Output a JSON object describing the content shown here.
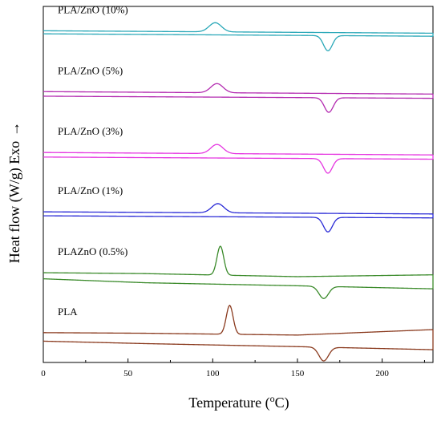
{
  "chart_data": {
    "type": "line",
    "title": "",
    "xlabel": "Temperature (",
    "xlabel_super": "o",
    "xlabel_end": "C)",
    "ylabel": "Heat flow (W/g) Exo",
    "ylabel_arrow": "→",
    "xlim": [
      0,
      230
    ],
    "xticks": [
      0,
      50,
      100,
      150,
      200
    ],
    "yticks_shown": false,
    "grid": false,
    "series": [
      {
        "name": "PLA/ZnO (10%)",
        "color": "#2aa8b8",
        "upper": {
          "baseline": [
            [
              0,
              10.7
            ],
            [
              230,
              10.62
            ]
          ],
          "peaks": [
            {
              "t": 101.5,
              "h": 0.3,
              "w": 3.6
            }
          ]
        },
        "lower": {
          "baseline": [
            [
              0,
              10.6
            ],
            [
              230,
              10.52
            ]
          ],
          "peaks": [
            {
              "t": 168.0,
              "h": -0.5,
              "w": 2.6
            }
          ]
        }
      },
      {
        "name": "PLA/ZnO (5%)",
        "color": "#b32bb0",
        "upper": {
          "baseline": [
            [
              0,
              8.7
            ],
            [
              230,
              8.62
            ]
          ],
          "peaks": [
            {
              "t": 102.5,
              "h": 0.3,
              "w": 3.6
            }
          ]
        },
        "lower": {
          "baseline": [
            [
              0,
              8.55
            ],
            [
              230,
              8.48
            ]
          ],
          "peaks": [
            {
              "t": 168.5,
              "h": -0.48,
              "w": 2.6
            }
          ]
        }
      },
      {
        "name": "PLA/ZnO (3%)",
        "color": "#e536e0",
        "upper": {
          "baseline": [
            [
              0,
              6.7
            ],
            [
              230,
              6.62
            ]
          ],
          "peaks": [
            {
              "t": 102.5,
              "h": 0.3,
              "w": 3.6
            }
          ]
        },
        "lower": {
          "baseline": [
            [
              0,
              6.55
            ],
            [
              230,
              6.48
            ]
          ],
          "peaks": [
            {
              "t": 168.0,
              "h": -0.48,
              "w": 2.6
            }
          ]
        }
      },
      {
        "name": "PLA/ZnO (1%)",
        "color": "#2a2ad6",
        "upper": {
          "baseline": [
            [
              0,
              4.75
            ],
            [
              230,
              4.68
            ]
          ],
          "peaks": [
            {
              "t": 103.0,
              "h": 0.3,
              "w": 3.6
            }
          ]
        },
        "lower": {
          "baseline": [
            [
              0,
              4.62
            ],
            [
              230,
              4.55
            ]
          ],
          "peaks": [
            {
              "t": 168.0,
              "h": -0.48,
              "w": 2.6
            }
          ]
        }
      },
      {
        "name": "PLAZnO (0.5%)",
        "color": "#3a8a2a",
        "upper": {
          "baseline": [
            [
              0,
              2.75
            ],
            [
              60,
              2.72
            ],
            [
              150,
              2.62
            ],
            [
              230,
              2.68
            ]
          ],
          "peaks": [
            {
              "t": 104.5,
              "h": 0.95,
              "w": 2.0
            }
          ]
        },
        "lower": {
          "baseline": [
            [
              0,
              2.55
            ],
            [
              60,
              2.42
            ],
            [
              150,
              2.32
            ],
            [
              230,
              2.22
            ]
          ],
          "peaks": [
            {
              "t": 165.5,
              "h": -0.4,
              "w": 2.8
            }
          ]
        }
      },
      {
        "name": "PLA",
        "color": "#8a3a1e",
        "upper": {
          "baseline": [
            [
              0,
              0.78
            ],
            [
              60,
              0.76
            ],
            [
              150,
              0.7
            ],
            [
              230,
              0.88
            ]
          ],
          "peaks": [
            {
              "t": 110.0,
              "h": 0.95,
              "w": 2.0
            }
          ]
        },
        "lower": {
          "baseline": [
            [
              0,
              0.5
            ],
            [
              60,
              0.42
            ],
            [
              150,
              0.32
            ],
            [
              230,
              0.22
            ]
          ],
          "peaks": [
            {
              "t": 165.5,
              "h": -0.45,
              "w": 2.8
            }
          ]
        }
      }
    ]
  }
}
